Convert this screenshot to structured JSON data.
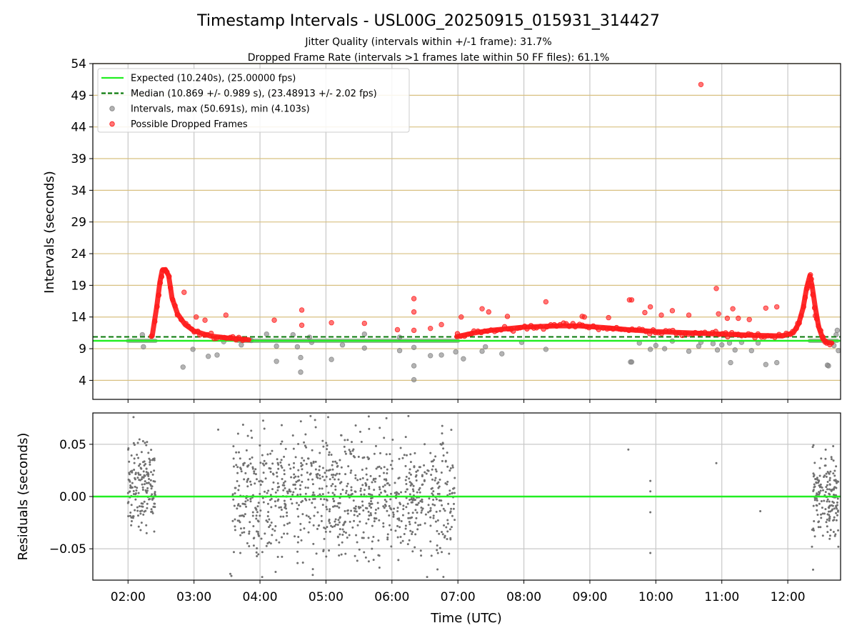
{
  "chart_data": [
    {
      "type": "scatter",
      "title": "Timestamp Intervals - USL00G_20250915_015931_314427",
      "subtitle_lines": [
        "Jitter Quality (intervals within +/-1 frame): 31.7%",
        "Dropped Frame Rate (intervals >1 frames late within 50 FF files): 61.1%"
      ],
      "xlabel": "",
      "ylabel": "Intervals (seconds)",
      "xlim": [
        "01:28",
        "12:48"
      ],
      "ylim": [
        1,
        54
      ],
      "yticks": [
        4,
        9,
        14,
        19,
        24,
        29,
        34,
        39,
        44,
        49,
        54
      ],
      "xticks": [
        "02:00",
        "03:00",
        "04:00",
        "05:00",
        "06:00",
        "07:00",
        "08:00",
        "09:00",
        "10:00",
        "11:00",
        "12:00"
      ],
      "grid": true,
      "legend_position": "top-left",
      "reference_lines": [
        {
          "label": "Expected (10.240s), (25.00000 fps)",
          "y": 10.24,
          "style": "solid",
          "color": "#22ee22"
        },
        {
          "label": "Median (10.869 +/- 0.989 s), (23.48913 +/- 2.02 fps)",
          "y": 10.869,
          "style": "dashed",
          "color": "#0a7a0a"
        }
      ],
      "series": [
        {
          "name": "Intervals, max (50.691s), min (4.103s)",
          "color": "#808080",
          "baseline_segments": [
            {
              "from": "02:00",
              "to": "02:25",
              "y": 10.24
            },
            {
              "from": "03:40",
              "to": "07:00",
              "y": 10.24
            },
            {
              "from": "12:20",
              "to": "12:45",
              "y": 10.24
            }
          ],
          "points": [
            [
              "02:13",
              11.2
            ],
            [
              "02:14",
              9.3
            ],
            [
              "02:50",
              6.1
            ],
            [
              "02:59",
              8.9
            ],
            [
              "03:13",
              7.8
            ],
            [
              "03:21",
              8.0
            ],
            [
              "03:27",
              10.1
            ],
            [
              "03:43",
              9.6
            ],
            [
              "03:52",
              10.3
            ],
            [
              "04:06",
              11.3
            ],
            [
              "04:15",
              9.4
            ],
            [
              "04:15",
              7.0
            ],
            [
              "04:30",
              11.2
            ],
            [
              "04:34",
              9.3
            ],
            [
              "04:45",
              10.8
            ],
            [
              "04:47",
              10.0
            ],
            [
              "04:37",
              5.3
            ],
            [
              "04:37",
              7.6
            ],
            [
              "05:05",
              7.3
            ],
            [
              "05:15",
              9.6
            ],
            [
              "05:35",
              9.1
            ],
            [
              "05:35",
              11.3
            ],
            [
              "06:07",
              10.8
            ],
            [
              "06:07",
              8.7
            ],
            [
              "06:20",
              9.2
            ],
            [
              "06:20",
              6.3
            ],
            [
              "06:20",
              4.1
            ],
            [
              "06:35",
              7.9
            ],
            [
              "06:45",
              8.0
            ],
            [
              "06:58",
              8.5
            ],
            [
              "07:05",
              7.4
            ],
            [
              "07:25",
              9.3
            ],
            [
              "07:22",
              8.6
            ],
            [
              "07:40",
              8.2
            ],
            [
              "07:58",
              10.0
            ],
            [
              "08:20",
              8.9
            ],
            [
              "09:37",
              6.9
            ],
            [
              "09:38",
              6.9
            ],
            [
              "09:45",
              9.9
            ],
            [
              "09:55",
              8.9
            ],
            [
              "10:00",
              9.5
            ],
            [
              "10:08",
              9.0
            ],
            [
              "10:15",
              10.2
            ],
            [
              "10:30",
              8.6
            ],
            [
              "10:39",
              9.4
            ],
            [
              "10:41",
              10.0
            ],
            [
              "10:52",
              9.8
            ],
            [
              "10:56",
              8.8
            ],
            [
              "11:00",
              9.6
            ],
            [
              "11:07",
              9.9
            ],
            [
              "11:08",
              6.8
            ],
            [
              "11:12",
              8.8
            ],
            [
              "11:18",
              10.0
            ],
            [
              "11:27",
              8.7
            ],
            [
              "11:33",
              9.9
            ],
            [
              "11:40",
              6.5
            ],
            [
              "11:50",
              6.8
            ],
            [
              "12:37",
              6.3
            ],
            [
              "12:36",
              6.4
            ],
            [
              "12:42",
              9.5
            ],
            [
              "12:44",
              11.2
            ],
            [
              "12:45",
              11.9
            ],
            [
              "12:46",
              8.7
            ]
          ]
        },
        {
          "name": "Possible Dropped Frames",
          "color": "#ff1a1a",
          "curve_segments": [
            [
              [
                "02:22",
                11.0
              ],
              [
                "02:26",
                15.5
              ],
              [
                "02:29",
                19.5
              ],
              [
                "02:31",
                21.3
              ],
              [
                "02:34",
                21.5
              ],
              [
                "02:37",
                20.5
              ],
              [
                "02:40",
                17.0
              ],
              [
                "02:45",
                14.5
              ],
              [
                "02:52",
                12.8
              ],
              [
                "03:00",
                11.8
              ],
              [
                "03:15",
                11.0
              ],
              [
                "03:30",
                10.7
              ],
              [
                "03:50",
                10.4
              ]
            ],
            [
              [
                "06:59",
                10.9
              ],
              [
                "07:15",
                11.5
              ],
              [
                "07:30",
                11.9
              ],
              [
                "08:00",
                12.4
              ],
              [
                "08:30",
                12.6
              ],
              [
                "08:50",
                12.6
              ],
              [
                "09:15",
                12.3
              ],
              [
                "09:35",
                12.0
              ],
              [
                "10:00",
                11.7
              ],
              [
                "10:30",
                11.5
              ],
              [
                "11:00",
                11.3
              ],
              [
                "11:30",
                11.1
              ],
              [
                "11:55",
                11.0
              ],
              [
                "12:05",
                11.5
              ],
              [
                "12:10",
                13.0
              ],
              [
                "12:14",
                15.5
              ],
              [
                "12:17",
                18.5
              ],
              [
                "12:20",
                20.5
              ],
              [
                "12:22",
                19.0
              ],
              [
                "12:25",
                15.5
              ],
              [
                "12:28",
                12.5
              ],
              [
                "12:32",
                10.5
              ],
              [
                "12:36",
                10.0
              ],
              [
                "12:40",
                9.9
              ]
            ]
          ],
          "points": [
            [
              "02:51",
              17.9
            ],
            [
              "03:02",
              14.0
            ],
            [
              "03:10",
              13.5
            ],
            [
              "03:29",
              14.3
            ],
            [
              "04:13",
              13.5
            ],
            [
              "04:38",
              15.1
            ],
            [
              "04:38",
              12.7
            ],
            [
              "05:05",
              13.1
            ],
            [
              "05:35",
              13.0
            ],
            [
              "06:05",
              12.0
            ],
            [
              "06:20",
              16.9
            ],
            [
              "06:20",
              14.8
            ],
            [
              "06:20",
              11.9
            ],
            [
              "06:35",
              12.2
            ],
            [
              "06:45",
              12.8
            ],
            [
              "07:03",
              14.0
            ],
            [
              "07:22",
              15.3
            ],
            [
              "07:28",
              14.8
            ],
            [
              "07:45",
              14.1
            ],
            [
              "08:20",
              16.4
            ],
            [
              "08:53",
              14.1
            ],
            [
              "08:55",
              14.0
            ],
            [
              "09:17",
              13.9
            ],
            [
              "09:36",
              16.7
            ],
            [
              "09:38",
              16.7
            ],
            [
              "09:50",
              14.7
            ],
            [
              "09:55",
              15.6
            ],
            [
              "10:05",
              14.3
            ],
            [
              "10:15",
              15.0
            ],
            [
              "10:30",
              14.3
            ],
            [
              "10:41",
              50.7
            ],
            [
              "10:55",
              18.5
            ],
            [
              "10:57",
              14.5
            ],
            [
              "11:05",
              13.8
            ],
            [
              "11:10",
              15.3
            ],
            [
              "11:15",
              13.8
            ],
            [
              "11:25",
              13.6
            ],
            [
              "11:40",
              15.4
            ],
            [
              "11:50",
              15.6
            ],
            [
              "12:09",
              13.0
            ],
            [
              "12:25",
              14.2
            ]
          ]
        }
      ]
    },
    {
      "type": "scatter",
      "title": "",
      "xlabel": "Time (UTC)",
      "ylabel": "Residuals (seconds)",
      "xlim": [
        "01:28",
        "12:48"
      ],
      "ylim": [
        -0.08,
        0.08
      ],
      "yticks": [
        -0.05,
        0.0,
        0.05
      ],
      "ytick_labels": [
        "−0.05",
        "0.00",
        "0.05"
      ],
      "xticks": [
        "02:00",
        "03:00",
        "04:00",
        "05:00",
        "06:00",
        "07:00",
        "08:00",
        "09:00",
        "10:00",
        "11:00",
        "12:00"
      ],
      "grid": true,
      "reference_lines": [
        {
          "label": "",
          "y": 0.0,
          "style": "solid",
          "color": "#22ee22"
        }
      ],
      "series": [
        {
          "name": "",
          "color": "#707070",
          "clusters": [
            {
              "from": "02:00",
              "to": "02:25",
              "spread": 0.018,
              "center": 0.01,
              "count": 170
            },
            {
              "from": "03:35",
              "to": "06:58",
              "spread": 0.028,
              "center": 0.0,
              "count": 950
            },
            {
              "from": "12:22",
              "to": "12:46",
              "spread": 0.02,
              "center": 0.0,
              "count": 170
            }
          ],
          "points": [
            [
              "02:05",
              0.076
            ],
            [
              "03:22",
              0.064
            ],
            [
              "03:33",
              -0.074
            ],
            [
              "03:34",
              -0.076
            ],
            [
              "03:52",
              0.063
            ],
            [
              "04:02",
              -0.077
            ],
            [
              "04:04",
              0.065
            ],
            [
              "04:46",
              0.077
            ],
            [
              "04:48",
              -0.075
            ],
            [
              "05:02",
              0.076
            ],
            [
              "05:55",
              0.075
            ],
            [
              "06:15",
              0.077
            ],
            [
              "06:32",
              -0.077
            ],
            [
              "09:35",
              0.045
            ],
            [
              "09:55",
              0.015
            ],
            [
              "09:55",
              0.005
            ],
            [
              "09:55",
              -0.015
            ],
            [
              "09:55",
              -0.054
            ],
            [
              "10:55",
              0.032
            ],
            [
              "11:35",
              -0.014
            ],
            [
              "12:22",
              -0.048
            ],
            [
              "12:23",
              -0.07
            ],
            [
              "12:46",
              -0.048
            ]
          ]
        }
      ]
    }
  ]
}
